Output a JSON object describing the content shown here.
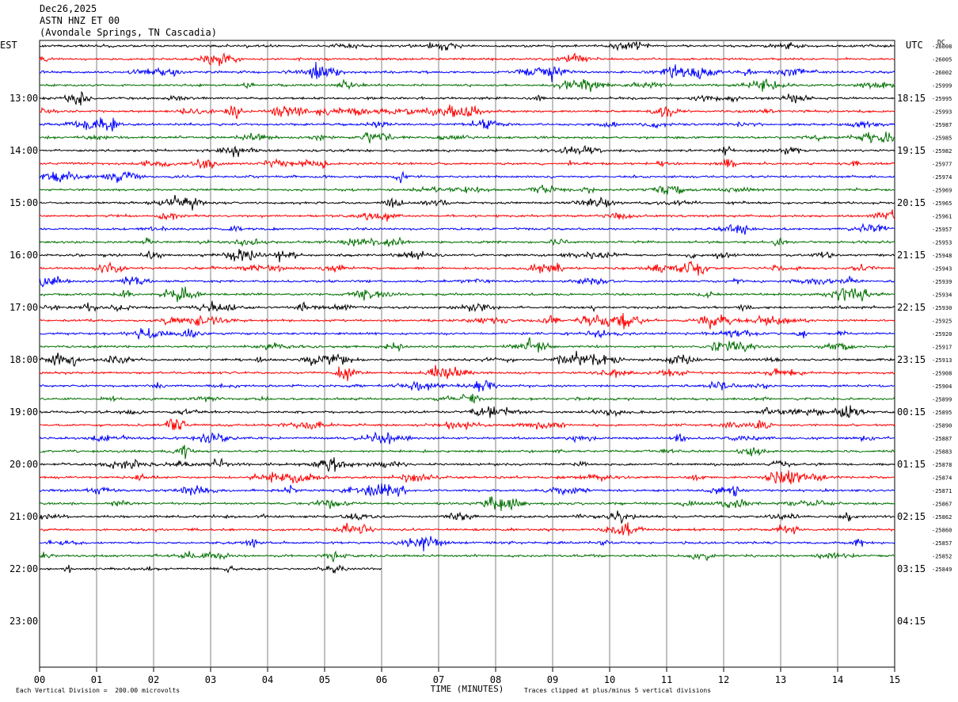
{
  "header": {
    "date": "Dec26,2025",
    "station": "ASTN HNZ ET 00",
    "location": "(Avondale Springs, TN Cascadia)"
  },
  "chart_data": {
    "type": "line",
    "title": "Dec26,2025 ASTN HNZ ET 00 (Avondale Springs, TN Cascadia)",
    "xlabel": "TIME (MINUTES)",
    "x_ticks": [
      "00",
      "01",
      "02",
      "03",
      "04",
      "05",
      "06",
      "07",
      "08",
      "09",
      "10",
      "11",
      "12",
      "13",
      "14",
      "15"
    ],
    "xlim": [
      0,
      15
    ],
    "left_axis_label": "EST",
    "right_axis_label": "UTC",
    "dc_label": "DC",
    "left_hour_labels": [
      "13:00",
      "14:00",
      "15:00",
      "16:00",
      "17:00",
      "18:00",
      "19:00",
      "20:00",
      "21:00",
      "22:00",
      "23:00"
    ],
    "right_hour_labels": [
      "18:15",
      "19:15",
      "20:15",
      "21:15",
      "22:15",
      "23:15",
      "00:15",
      "01:15",
      "02:15",
      "03:15",
      "04:15"
    ],
    "rows_per_hour": 4,
    "first_row_offset": 4,
    "trace_colors": [
      "#000000",
      "#ff0000",
      "#0000ff",
      "#007000"
    ],
    "grid": true,
    "dc_values": [
      "-26008",
      "-26005",
      "-26002",
      "-25999",
      "-25995",
      "-25993",
      "-25987",
      "-25985",
      "-25982",
      "-25977",
      "-25974",
      "-25969",
      "-25965",
      "-25961",
      "-25957",
      "-25953",
      "-25948",
      "-25943",
      "-25939",
      "-25934",
      "-25930",
      "-25925",
      "-25920",
      "-25917",
      "-25913",
      "-25908",
      "-25904",
      "-25899",
      "-25895",
      "-25890",
      "-25887",
      "-25883",
      "-25878",
      "-25874",
      "-25871",
      "-25867",
      "-25862",
      "-25860",
      "-25857",
      "-25852",
      "-25849"
    ],
    "last_trace_end_minute": 6.0,
    "footer_left": "Each Vertical Division =  200.00 microvolts",
    "footer_right": "Traces clipped at plus/minus 5 vertical divisions"
  }
}
